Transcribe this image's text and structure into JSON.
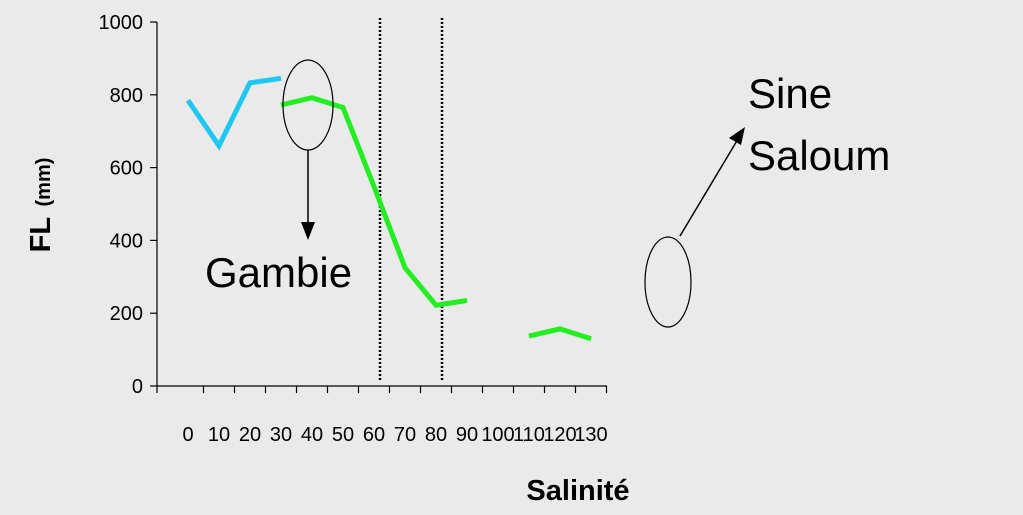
{
  "chart_data": {
    "type": "line",
    "xlabel": "Salinité",
    "ylabel_main": "FL",
    "ylabel_unit": "(mm)",
    "ylim": [
      0,
      1000
    ],
    "y_ticks": [
      "0",
      "200",
      "400",
      "600",
      "800",
      "1000"
    ],
    "x_ticks": [
      "0",
      "10",
      "20",
      "30",
      "40",
      "50",
      "60",
      "70",
      "80",
      "90",
      "100",
      "110",
      "120",
      "130"
    ],
    "grid": false,
    "series": [
      {
        "color": "#1ec8f0",
        "segments": [
          [
            [
              0,
              785
            ],
            [
              10,
              660
            ],
            [
              20,
              833
            ],
            [
              30,
              845
            ]
          ]
        ]
      },
      {
        "color": "#22ee22",
        "segments": [
          [
            [
              30,
              772
            ],
            [
              40,
              792
            ],
            [
              50,
              765
            ],
            [
              60,
              548
            ],
            [
              70,
              325
            ],
            [
              80,
              222
            ],
            [
              90,
              235
            ]
          ],
          [
            [
              110,
              137
            ],
            [
              120,
              157
            ],
            [
              130,
              130
            ]
          ]
        ]
      }
    ],
    "vlines": [
      60,
      80
    ],
    "annotations": [
      {
        "text": "Gambie"
      },
      {
        "text": "Sine"
      },
      {
        "text": "Saloum"
      }
    ]
  },
  "colors": {
    "background": "#eaeaea",
    "axis": "#000000"
  }
}
